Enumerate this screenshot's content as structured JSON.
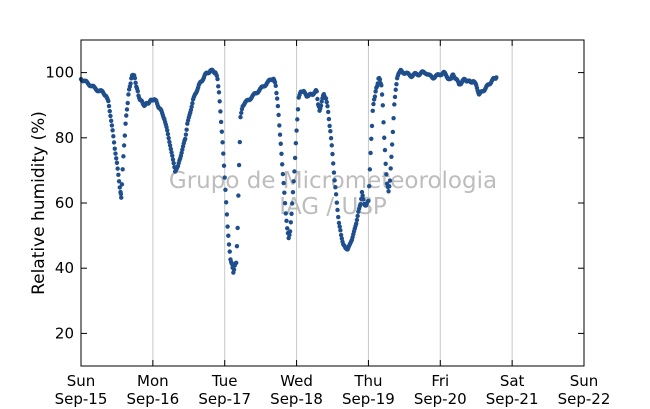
{
  "chart_data": {
    "type": "scatter",
    "title": "",
    "xlabel": "",
    "ylabel": "Relative humidity (%)",
    "xlim": [
      0,
      7
    ],
    "ylim": [
      10,
      110
    ],
    "yticks": [
      20,
      40,
      60,
      80,
      100
    ],
    "grid": "vertical",
    "marker_color": "#1f4e8c",
    "xticks": [
      {
        "day": "Sun",
        "date": "Sep-15"
      },
      {
        "day": "Mon",
        "date": "Sep-16"
      },
      {
        "day": "Tue",
        "date": "Sep-17"
      },
      {
        "day": "Wed",
        "date": "Sep-18"
      },
      {
        "day": "Thu",
        "date": "Sep-19"
      },
      {
        "day": "Fri",
        "date": "Sep-20"
      },
      {
        "day": "Sat",
        "date": "Sep-21"
      },
      {
        "day": "Sun",
        "date": "Sep-22"
      }
    ],
    "watermark": [
      "Grupo de Micrometeorologia",
      "IAG / USP"
    ],
    "series": [
      {
        "x_unit": "days since Sun Sep-15 00:00",
        "points": [
          [
            0.0,
            98
          ],
          [
            0.05,
            97.5
          ],
          [
            0.1,
            96.5
          ],
          [
            0.15,
            96
          ],
          [
            0.2,
            95
          ],
          [
            0.25,
            94.5
          ],
          [
            0.3,
            94
          ],
          [
            0.35,
            93
          ],
          [
            0.38,
            91
          ],
          [
            0.41,
            87
          ],
          [
            0.44,
            82
          ],
          [
            0.47,
            77
          ],
          [
            0.5,
            72
          ],
          [
            0.53,
            67
          ],
          [
            0.55,
            63
          ],
          [
            0.56,
            62
          ],
          [
            0.58,
            70
          ],
          [
            0.6,
            78
          ],
          [
            0.62,
            84
          ],
          [
            0.64,
            89
          ],
          [
            0.66,
            93
          ],
          [
            0.68,
            96
          ],
          [
            0.7,
            98
          ],
          [
            0.72,
            99.5
          ],
          [
            0.74,
            99
          ],
          [
            0.76,
            97
          ],
          [
            0.78,
            95
          ],
          [
            0.8,
            93
          ],
          [
            0.83,
            91.5
          ],
          [
            0.86,
            90.5
          ],
          [
            0.89,
            90
          ],
          [
            0.92,
            90.5
          ],
          [
            0.95,
            91
          ],
          [
            0.98,
            91.5
          ],
          [
            1.02,
            92
          ],
          [
            1.05,
            91
          ],
          [
            1.08,
            89.5
          ],
          [
            1.12,
            88
          ],
          [
            1.16,
            86
          ],
          [
            1.2,
            82
          ],
          [
            1.24,
            78
          ],
          [
            1.28,
            73
          ],
          [
            1.31,
            70
          ],
          [
            1.35,
            71
          ],
          [
            1.38,
            74
          ],
          [
            1.42,
            77
          ],
          [
            1.45,
            80
          ],
          [
            1.48,
            84
          ],
          [
            1.52,
            88
          ],
          [
            1.56,
            91.5
          ],
          [
            1.6,
            94
          ],
          [
            1.64,
            96
          ],
          [
            1.68,
            97.5
          ],
          [
            1.72,
            99
          ],
          [
            1.76,
            100
          ],
          [
            1.8,
            100.5
          ],
          [
            1.84,
            100.5
          ],
          [
            1.87,
            100
          ],
          [
            1.9,
            98
          ],
          [
            1.92,
            94
          ],
          [
            1.94,
            88
          ],
          [
            1.96,
            82
          ],
          [
            1.98,
            75
          ],
          [
            2.0,
            68
          ],
          [
            2.02,
            60
          ],
          [
            2.04,
            53
          ],
          [
            2.06,
            47
          ],
          [
            2.08,
            43
          ],
          [
            2.1,
            41
          ],
          [
            2.12,
            39
          ],
          [
            2.14,
            40.5
          ],
          [
            2.16,
            42
          ],
          [
            2.18,
            52
          ],
          [
            2.2,
            72
          ],
          [
            2.22,
            86
          ],
          [
            2.25,
            90
          ],
          [
            2.3,
            91
          ],
          [
            2.35,
            92
          ],
          [
            2.4,
            93
          ],
          [
            2.45,
            94
          ],
          [
            2.5,
            95
          ],
          [
            2.55,
            96
          ],
          [
            2.6,
            97
          ],
          [
            2.65,
            98
          ],
          [
            2.68,
            98
          ],
          [
            2.71,
            96
          ],
          [
            2.73,
            92
          ],
          [
            2.75,
            87
          ],
          [
            2.77,
            81
          ],
          [
            2.79,
            75
          ],
          [
            2.81,
            69
          ],
          [
            2.83,
            63
          ],
          [
            2.85,
            57
          ],
          [
            2.87,
            52
          ],
          [
            2.89,
            49.5
          ],
          [
            2.91,
            51
          ],
          [
            2.93,
            57
          ],
          [
            2.95,
            63
          ],
          [
            2.97,
            70
          ],
          [
            2.99,
            78
          ],
          [
            3.01,
            86
          ],
          [
            3.03,
            92
          ],
          [
            3.06,
            94.5
          ],
          [
            3.1,
            94
          ],
          [
            3.14,
            93
          ],
          [
            3.18,
            93
          ],
          [
            3.22,
            93.5
          ],
          [
            3.26,
            94
          ],
          [
            3.28,
            94.5
          ],
          [
            3.3,
            90
          ],
          [
            3.32,
            88.5
          ],
          [
            3.35,
            91
          ],
          [
            3.38,
            93.5
          ],
          [
            3.41,
            92
          ],
          [
            3.44,
            88
          ],
          [
            3.47,
            82
          ],
          [
            3.5,
            75
          ],
          [
            3.53,
            67
          ],
          [
            3.56,
            60
          ],
          [
            3.59,
            54
          ],
          [
            3.62,
            50
          ],
          [
            3.65,
            47.5
          ],
          [
            3.68,
            46
          ],
          [
            3.71,
            46
          ],
          [
            3.74,
            47
          ],
          [
            3.77,
            49
          ],
          [
            3.8,
            51
          ],
          [
            3.83,
            54
          ],
          [
            3.86,
            57
          ],
          [
            3.89,
            60
          ],
          [
            3.91,
            63
          ],
          [
            3.94,
            60
          ],
          [
            3.97,
            59
          ],
          [
            4.0,
            61
          ],
          [
            4.02,
            70
          ],
          [
            4.04,
            80
          ],
          [
            4.06,
            88
          ],
          [
            4.08,
            92
          ],
          [
            4.1,
            94
          ],
          [
            4.12,
            96
          ],
          [
            4.14,
            98
          ],
          [
            4.16,
            98
          ],
          [
            4.18,
            96
          ],
          [
            4.2,
            90
          ],
          [
            4.22,
            80
          ],
          [
            4.24,
            72
          ],
          [
            4.26,
            66
          ],
          [
            4.28,
            63.5
          ],
          [
            4.3,
            67
          ],
          [
            4.32,
            74
          ],
          [
            4.34,
            82
          ],
          [
            4.36,
            90
          ],
          [
            4.38,
            95
          ],
          [
            4.4,
            98
          ],
          [
            4.42,
            100
          ],
          [
            4.45,
            100.5
          ],
          [
            4.5,
            100
          ],
          [
            4.55,
            99.5
          ],
          [
            4.6,
            99
          ],
          [
            4.65,
            99.5
          ],
          [
            4.7,
            99.5
          ],
          [
            4.75,
            100
          ],
          [
            4.8,
            100
          ],
          [
            4.85,
            99
          ],
          [
            4.9,
            98.5
          ],
          [
            4.95,
            99
          ],
          [
            5.0,
            99.5
          ],
          [
            5.05,
            100
          ],
          [
            5.1,
            98.5
          ],
          [
            5.15,
            98
          ],
          [
            5.18,
            99.5
          ],
          [
            5.22,
            98
          ],
          [
            5.26,
            96.5
          ],
          [
            5.3,
            97
          ],
          [
            5.34,
            98
          ],
          [
            5.38,
            97.5
          ],
          [
            5.42,
            97
          ],
          [
            5.46,
            97.5
          ],
          [
            5.5,
            96
          ],
          [
            5.54,
            93.5
          ],
          [
            5.58,
            94
          ],
          [
            5.62,
            95
          ],
          [
            5.66,
            96
          ],
          [
            5.7,
            97
          ],
          [
            5.74,
            98
          ],
          [
            5.78,
            98.5
          ]
        ]
      }
    ]
  }
}
